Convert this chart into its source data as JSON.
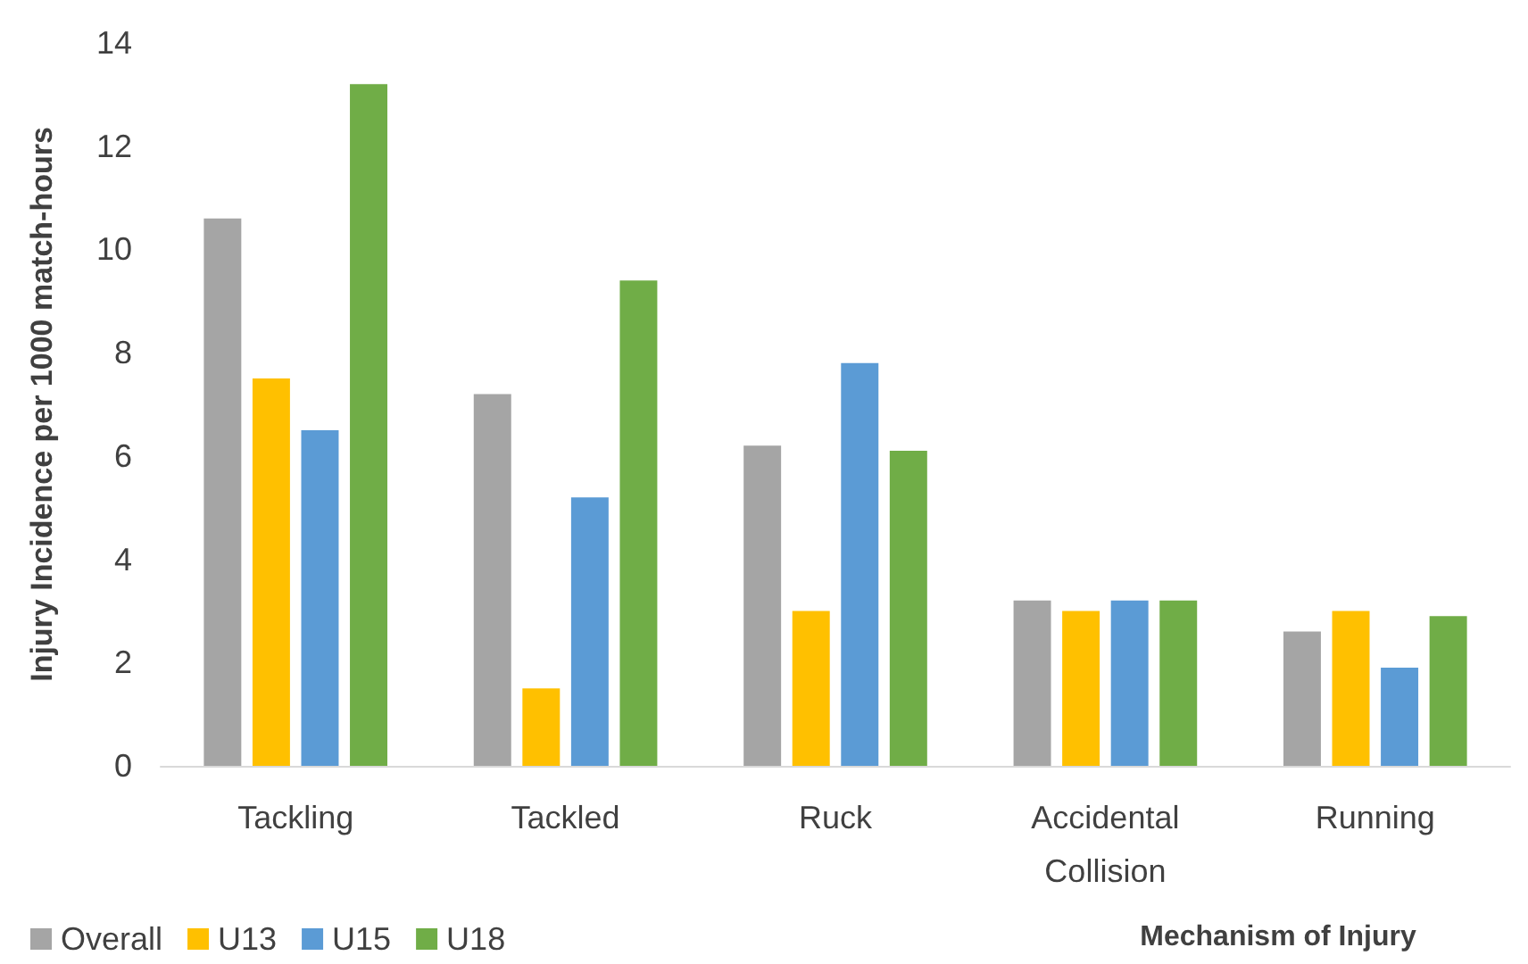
{
  "chart_data": {
    "type": "bar",
    "xlabel": "Mechanism of Injury",
    "ylabel": "Injury Incidence per 1000 match-hours",
    "categories": [
      "Tackling",
      "Tackled",
      "Ruck",
      "Accidental Collision",
      "Running"
    ],
    "series": [
      {
        "name": "Overall",
        "color": "#a5a5a5",
        "values": [
          10.6,
          7.2,
          6.2,
          3.2,
          2.6
        ]
      },
      {
        "name": "U13",
        "color": "#ffc000",
        "values": [
          7.5,
          1.5,
          3.0,
          3.0,
          3.0
        ]
      },
      {
        "name": "U15",
        "color": "#5b9bd5",
        "values": [
          6.5,
          5.2,
          7.8,
          3.2,
          1.9
        ]
      },
      {
        "name": "U18",
        "color": "#70ad47",
        "values": [
          13.2,
          9.4,
          6.1,
          3.2,
          2.9
        ]
      }
    ],
    "ylim": [
      0,
      14
    ],
    "yticks": [
      0,
      2,
      4,
      6,
      8,
      10,
      12,
      14
    ],
    "grid": false,
    "legend": "bottom left"
  }
}
